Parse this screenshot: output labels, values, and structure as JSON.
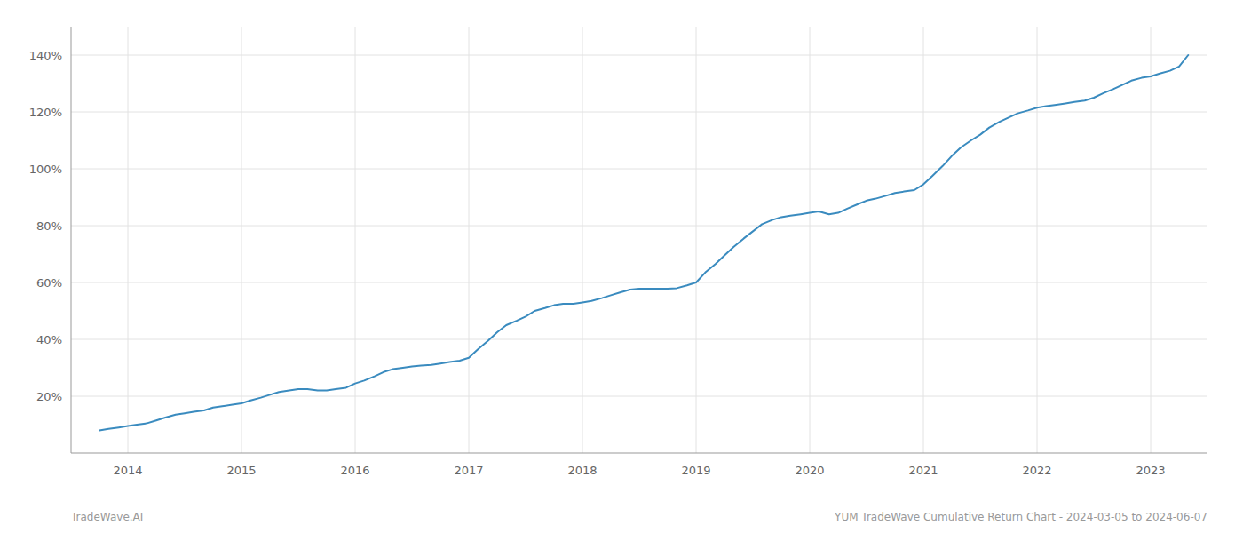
{
  "chart_data": {
    "type": "line",
    "annotations": [
      "TradeWave.AI",
      "YUM TradeWave Cumulative Return Chart - 2024-03-05 to 2024-06-07"
    ],
    "color": "#3a8bbf",
    "grid": true,
    "xlim": [
      2013.5,
      2023.5
    ],
    "xticks": [
      2014,
      2015,
      2016,
      2017,
      2018,
      2019,
      2020,
      2021,
      2022,
      2023
    ],
    "ylim": [
      0.0,
      1.5
    ],
    "yticks": [
      {
        "value": 0.2,
        "label": "20%"
      },
      {
        "value": 0.4,
        "label": "40%"
      },
      {
        "value": 0.6,
        "label": "60%"
      },
      {
        "value": 0.8,
        "label": "80%"
      },
      {
        "value": 1.0,
        "label": "100%"
      },
      {
        "value": 1.2,
        "label": "120%"
      },
      {
        "value": 1.4,
        "label": "140%"
      }
    ],
    "x": [
      2013.75,
      2013.83,
      2013.92,
      2014.0,
      2014.08,
      2014.17,
      2014.25,
      2014.33,
      2014.42,
      2014.5,
      2014.58,
      2014.67,
      2014.75,
      2014.83,
      2014.92,
      2015.0,
      2015.08,
      2015.17,
      2015.25,
      2015.33,
      2015.42,
      2015.5,
      2015.58,
      2015.67,
      2015.75,
      2015.83,
      2015.92,
      2016.0,
      2016.08,
      2016.17,
      2016.25,
      2016.33,
      2016.42,
      2016.5,
      2016.58,
      2016.67,
      2016.75,
      2016.83,
      2016.92,
      2017.0,
      2017.08,
      2017.17,
      2017.25,
      2017.33,
      2017.42,
      2017.5,
      2017.58,
      2017.67,
      2017.75,
      2017.83,
      2017.92,
      2018.0,
      2018.08,
      2018.17,
      2018.25,
      2018.33,
      2018.42,
      2018.5,
      2018.58,
      2018.67,
      2018.75,
      2018.83,
      2018.92,
      2019.0,
      2019.08,
      2019.17,
      2019.25,
      2019.33,
      2019.42,
      2019.5,
      2019.58,
      2019.67,
      2019.75,
      2019.83,
      2019.92,
      2020.0,
      2020.08,
      2020.17,
      2020.25,
      2020.33,
      2020.42,
      2020.5,
      2020.58,
      2020.67,
      2020.75,
      2020.83,
      2020.92,
      2021.0,
      2021.08,
      2021.17,
      2021.25,
      2021.33,
      2021.42,
      2021.5,
      2021.58,
      2021.67,
      2021.75,
      2021.83,
      2021.92,
      2022.0,
      2022.08,
      2022.17,
      2022.25,
      2022.33,
      2022.42,
      2022.5,
      2022.58,
      2022.67,
      2022.75,
      2022.83,
      2022.92,
      2023.0,
      2023.08,
      2023.17,
      2023.25,
      2023.33
    ],
    "values": [
      0.08,
      0.085,
      0.09,
      0.095,
      0.1,
      0.105,
      0.115,
      0.125,
      0.135,
      0.14,
      0.145,
      0.15,
      0.16,
      0.165,
      0.17,
      0.175,
      0.185,
      0.195,
      0.205,
      0.215,
      0.22,
      0.225,
      0.225,
      0.22,
      0.22,
      0.225,
      0.23,
      0.245,
      0.255,
      0.27,
      0.285,
      0.295,
      0.3,
      0.305,
      0.308,
      0.31,
      0.315,
      0.32,
      0.325,
      0.335,
      0.365,
      0.395,
      0.425,
      0.45,
      0.465,
      0.48,
      0.5,
      0.51,
      0.52,
      0.525,
      0.525,
      0.53,
      0.535,
      0.545,
      0.555,
      0.565,
      0.575,
      0.578,
      0.578,
      0.578,
      0.578,
      0.58,
      0.59,
      0.6,
      0.635,
      0.665,
      0.695,
      0.725,
      0.755,
      0.78,
      0.805,
      0.82,
      0.83,
      0.835,
      0.84,
      0.845,
      0.85,
      0.84,
      0.845,
      0.86,
      0.875,
      0.888,
      0.895,
      0.905,
      0.915,
      0.92,
      0.925,
      0.945,
      0.975,
      1.01,
      1.045,
      1.075,
      1.1,
      1.12,
      1.145,
      1.165,
      1.18,
      1.195,
      1.205,
      1.215,
      1.22,
      1.225,
      1.23,
      1.235,
      1.24,
      1.25,
      1.265,
      1.28,
      1.295,
      1.31,
      1.32,
      1.325,
      1.335,
      1.345,
      1.36,
      1.4
    ]
  }
}
